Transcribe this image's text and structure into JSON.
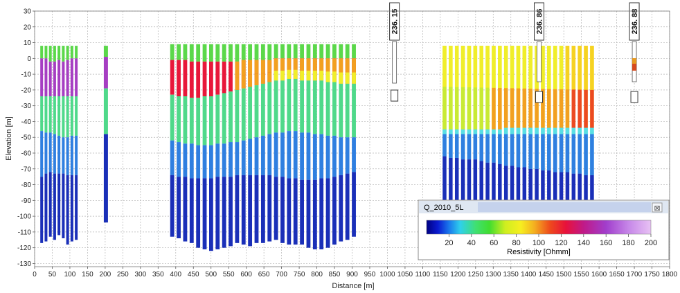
{
  "chart_data": {
    "type": "bar",
    "subtype": "stacked-resistivity-columns",
    "xlabel": "Distance [m]",
    "ylabel": "Elevation [m]",
    "xlim": [
      0,
      1800
    ],
    "ylim": [
      -132,
      30
    ],
    "x_ticks": [
      0,
      50,
      100,
      150,
      200,
      250,
      300,
      350,
      400,
      450,
      500,
      550,
      600,
      650,
      700,
      750,
      800,
      850,
      900,
      950,
      1000,
      1050,
      1100,
      1150,
      1200,
      1250,
      1300,
      1350,
      1400,
      1450,
      1500,
      1550,
      1600,
      1650,
      1700,
      1750,
      1800
    ],
    "y_ticks": [
      30,
      20,
      10,
      0,
      -10,
      -20,
      -30,
      -40,
      -50,
      -60,
      -70,
      -80,
      -90,
      -100,
      -110,
      -120,
      -130
    ],
    "grid": true,
    "colors": {
      "very_low": "#1a2fb8",
      "low": "#2f7fe0",
      "low_mid": "#55dde6",
      "mid": "#4fd98a",
      "mid_high": "#5bd84a",
      "yellow": "#f0ee2a",
      "orange": "#f2a020",
      "red": "#e8173a",
      "purple": "#a63ec2"
    },
    "groups": [
      {
        "x_start": 20,
        "x_end": 118,
        "count": 9,
        "top": 8,
        "bottom": [
          -117,
          -116,
          -113,
          -115,
          -112,
          -114,
          -118,
          -116,
          -115
        ],
        "layers": [
          {
            "to": [
              0,
              0,
              -2,
              -2,
              -1,
              -2,
              -1,
              0,
              0
            ],
            "color_key": "mid_high"
          },
          {
            "to": [
              -24,
              -24,
              -24,
              -24,
              -24,
              -24,
              -24,
              -24,
              -24
            ],
            "color_key": "purple"
          },
          {
            "to": [
              -46,
              -47,
              -47,
              -48,
              -49,
              -50,
              -50,
              -49,
              -49
            ],
            "color_key": "mid"
          },
          {
            "to": [
              -75,
              -73,
              -72,
              -73,
              -73,
              -73,
              -74,
              -74,
              -74
            ],
            "color_key": "low"
          },
          {
            "to": [
              -117,
              -116,
              -113,
              -115,
              -112,
              -114,
              -118,
              -116,
              -115
            ],
            "color_key": "very_low"
          }
        ]
      },
      {
        "x_start": 202,
        "x_end": 202,
        "count": 1,
        "top": 8,
        "bottom": [
          -104
        ],
        "layers": [
          {
            "to": [
              1
            ],
            "color_key": "mid_high"
          },
          {
            "to": [
              -19
            ],
            "color_key": "purple"
          },
          {
            "to": [
              -48
            ],
            "color_key": "mid"
          },
          {
            "to": [
              -104
            ],
            "color_key": "very_low"
          }
        ]
      },
      {
        "x_start": 390,
        "x_end": 905,
        "count": 29,
        "top": 9,
        "bottom": [
          -113,
          -114,
          -116,
          -117,
          -120,
          -121,
          -122,
          -121,
          -120,
          -119,
          -117,
          -118,
          -119,
          -117,
          -117,
          -116,
          -115,
          -117,
          -118,
          -118,
          -118,
          -120,
          -121,
          -121,
          -120,
          -118,
          -116,
          -115,
          -113
        ],
        "layers": [
          {
            "to": [
              -1,
              -1,
              -1,
              -2,
              -2,
              -2,
              -2,
              -2,
              -2,
              -2,
              -2,
              -1,
              -1,
              -1,
              -1,
              -1,
              0,
              0,
              0,
              0,
              0,
              0,
              0,
              0,
              0,
              0,
              0,
              0,
              0
            ],
            "color_key": "mid_high"
          },
          {
            "to": [
              -23,
              -24,
              -24,
              -25,
              -25,
              -24,
              -24,
              -23,
              -22,
              -21,
              -20,
              -19,
              -18,
              -17,
              -16,
              -15,
              -14,
              -14,
              -13,
              -13,
              -14,
              -14,
              -14,
              -14,
              -15,
              -15,
              -16,
              -16,
              -16
            ],
            "color_key": "red"
          },
          {
            "to": [
              -52,
              -53,
              -54,
              -54,
              -55,
              -55,
              -55,
              -54,
              -54,
              -53,
              -53,
              -52,
              -51,
              -50,
              -49,
              -48,
              -47,
              -47,
              -46,
              -46,
              -47,
              -47,
              -48,
              -48,
              -49,
              -49,
              -50,
              -50,
              -50
            ],
            "color_key": "mid"
          },
          {
            "to": [
              -74,
              -75,
              -75,
              -76,
              -76,
              -76,
              -76,
              -75,
              -75,
              -75,
              -74,
              -74,
              -74,
              -74,
              -74,
              -74,
              -75,
              -75,
              -76,
              -76,
              -77,
              -77,
              -77,
              -76,
              -76,
              -75,
              -74,
              -73,
              -72
            ],
            "color_key": "low"
          },
          {
            "to": [
              -113,
              -114,
              -116,
              -117,
              -120,
              -121,
              -122,
              -121,
              -120,
              -119,
              -117,
              -118,
              -119,
              -117,
              -117,
              -116,
              -115,
              -117,
              -118,
              -118,
              -118,
              -120,
              -121,
              -121,
              -120,
              -118,
              -116,
              -115,
              -113
            ],
            "color_key": "very_low"
          }
        ]
      },
      {
        "x_start": 1162,
        "x_end": 1580,
        "count": 25,
        "top": 8,
        "bottom": [
          -112,
          -112,
          -112,
          -112,
          -112,
          -112,
          -112,
          -112,
          -112,
          -112,
          -112,
          -112,
          -112,
          -112,
          -112,
          -112,
          -112,
          -112,
          -112,
          -112,
          -112,
          -112,
          -112,
          -112,
          -112
        ],
        "layers": [
          {
            "to": [
              -45,
              -45,
              -45,
              -45,
              -45,
              -45,
              -45,
              -45,
              -45,
              -45,
              -44,
              -44,
              -44,
              -44,
              -44,
              -44,
              -44,
              -44,
              -44,
              -44,
              -44,
              -44,
              -44,
              -44,
              -44
            ],
            "color_key": "yellow"
          },
          {
            "to": [
              -62,
              -63,
              -63,
              -64,
              -64,
              -64,
              -65,
              -66,
              -66,
              -67,
              -68,
              -68,
              -69,
              -69,
              -70,
              -70,
              -71,
              -71,
              -72,
              -72,
              -72,
              -73,
              -73,
              -74,
              -74
            ],
            "color_key": "low_mid"
          },
          {
            "to": [
              -112,
              -112,
              -112,
              -112,
              -112,
              -112,
              -112,
              -112,
              -112,
              -112,
              -112,
              -112,
              -112,
              -112,
              -112,
              -112,
              -112,
              -112,
              -112,
              -112,
              -112,
              -112,
              -112,
              -112,
              -112
            ],
            "color_key": "very_low"
          }
        ]
      }
    ],
    "annotations": [
      {
        "x": 1020,
        "label": "236. 15"
      },
      {
        "x": 1430,
        "label": "236. 86"
      },
      {
        "x": 1700,
        "label": "236. 88"
      }
    ],
    "legend": {
      "title": "Q_2010_5L",
      "label": "Resistivity [Ohmm]",
      "ticks": [
        20,
        40,
        60,
        80,
        100,
        120,
        140,
        160,
        180,
        200
      ],
      "range": [
        0,
        200
      ],
      "close_symbol": "⊠"
    }
  }
}
